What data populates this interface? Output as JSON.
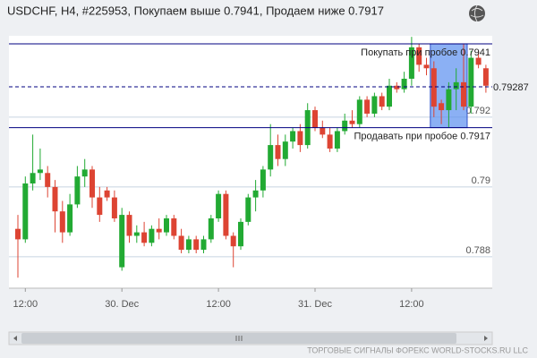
{
  "chart_data": {
    "type": "candlestick",
    "title": "USDCHF, H4, #225953, Покупаем выше 0.7941, Продаем ниже 0.7917",
    "categories": [
      null,
      "12:00",
      null,
      null,
      null,
      null,
      null,
      null,
      null,
      null,
      null,
      null,
      null,
      null,
      "30. Dec",
      null,
      null,
      null,
      null,
      null,
      null,
      null,
      null,
      null,
      null,
      null,
      null,
      "12:00",
      null,
      null,
      null,
      null,
      null,
      null,
      null,
      null,
      null,
      null,
      null,
      null,
      "31. Dec",
      null,
      null,
      null,
      null,
      null,
      null,
      null,
      null,
      null,
      null,
      null,
      null,
      "12:00",
      null,
      null,
      null,
      null,
      null,
      null,
      null,
      null,
      null,
      null
    ],
    "open": [
      0.7888,
      0.7885,
      0.7901,
      0.7904,
      0.7904,
      0.79,
      0.7893,
      0.7887,
      0.7895,
      0.7903,
      0.7905,
      0.7897,
      0.7899,
      0.7897,
      0.7877,
      0.7892,
      0.7886,
      0.7887,
      0.7884,
      0.7888,
      0.7887,
      0.7891,
      0.7886,
      0.7882,
      0.7885,
      0.7882,
      0.7885,
      0.7891,
      0.7898,
      0.7886,
      0.7883,
      0.789,
      0.7897,
      0.7899,
      0.7905,
      0.7912,
      0.7908,
      0.7913,
      0.7916,
      0.7912,
      0.7922,
      0.7917,
      0.7915,
      0.7911,
      0.7916,
      0.7919,
      0.7918,
      0.7925,
      0.7921,
      0.7926,
      0.7923,
      0.7929,
      0.7928,
      0.7931,
      0.794,
      0.7935,
      0.7934,
      0.7924,
      0.7922,
      0.7928,
      0.793,
      0.7923,
      0.7937,
      0.7934
    ],
    "high": [
      0.7892,
      0.7903,
      0.7915,
      0.7911,
      0.7906,
      0.7902,
      0.7896,
      0.7898,
      0.7906,
      0.7908,
      0.7906,
      0.79,
      0.79,
      0.7899,
      0.7894,
      0.7893,
      0.7889,
      0.789,
      0.7889,
      0.7891,
      0.7892,
      0.7892,
      0.7888,
      0.7886,
      0.7886,
      0.7886,
      0.7892,
      0.7899,
      0.7899,
      0.7887,
      0.7891,
      0.7898,
      0.7902,
      0.7906,
      0.7918,
      0.7915,
      0.7915,
      0.7917,
      0.7918,
      0.7924,
      0.7923,
      0.7919,
      0.7917,
      0.7917,
      0.7921,
      0.7922,
      0.7926,
      0.7926,
      0.7927,
      0.7927,
      0.7931,
      0.793,
      0.7933,
      0.7943,
      0.7941,
      0.7937,
      0.7936,
      0.7925,
      0.793,
      0.7934,
      0.7941,
      0.7939,
      0.7939,
      0.7935
    ],
    "low": [
      0.7874,
      0.7884,
      0.7899,
      0.7902,
      0.7897,
      0.7887,
      0.7884,
      0.7886,
      0.7894,
      0.79,
      0.7894,
      0.789,
      0.7896,
      0.789,
      0.7876,
      0.7884,
      0.7884,
      0.7883,
      0.7883,
      0.7885,
      0.7886,
      0.7885,
      0.7881,
      0.7881,
      0.7881,
      0.7881,
      0.7884,
      0.789,
      0.7885,
      0.7877,
      0.7882,
      0.7889,
      0.7893,
      0.7897,
      0.7903,
      0.7906,
      0.7906,
      0.7911,
      0.791,
      0.7911,
      0.7916,
      0.7914,
      0.791,
      0.791,
      0.7915,
      0.7917,
      0.7917,
      0.792,
      0.792,
      0.7922,
      0.7922,
      0.7927,
      0.7927,
      0.7929,
      0.7933,
      0.7932,
      0.792,
      0.7918,
      0.7917,
      0.7922,
      0.7922,
      0.7921,
      0.7934,
      0.7927
    ],
    "close": [
      0.7885,
      0.7901,
      0.7904,
      0.7905,
      0.79,
      0.7893,
      0.7887,
      0.7895,
      0.7903,
      0.7905,
      0.7897,
      0.7892,
      0.7897,
      0.7891,
      0.7892,
      0.7886,
      0.7887,
      0.7884,
      0.7888,
      0.7887,
      0.7891,
      0.7886,
      0.7882,
      0.7885,
      0.7882,
      0.7885,
      0.7891,
      0.7898,
      0.7886,
      0.7883,
      0.789,
      0.7897,
      0.7899,
      0.7905,
      0.7912,
      0.7908,
      0.7913,
      0.7916,
      0.7912,
      0.7922,
      0.7917,
      0.7915,
      0.7911,
      0.7916,
      0.7919,
      0.7918,
      0.7925,
      0.7921,
      0.7926,
      0.7923,
      0.7929,
      0.7928,
      0.7931,
      0.794,
      0.7935,
      0.7934,
      0.7923,
      0.7922,
      0.7928,
      0.793,
      0.7923,
      0.7937,
      0.7935,
      0.7929
    ],
    "up_color": "#22aa33",
    "down_color": "#dd4433",
    "ylim": [
      0.7871,
      0.79433
    ],
    "yticks": [
      0.788,
      0.79,
      0.792
    ],
    "grid": true,
    "levels": [
      {
        "value": 0.7941,
        "label": "Покупать при пробое 0.7941"
      },
      {
        "value": 0.7917,
        "label": "Продавать при пробое 0.7917"
      }
    ],
    "current_price": 0.79287,
    "footer": "ТОРГОВЫЕ СИГНАЛЫ ФОРЕКС WORLD-STOCKS.RU LLC"
  }
}
